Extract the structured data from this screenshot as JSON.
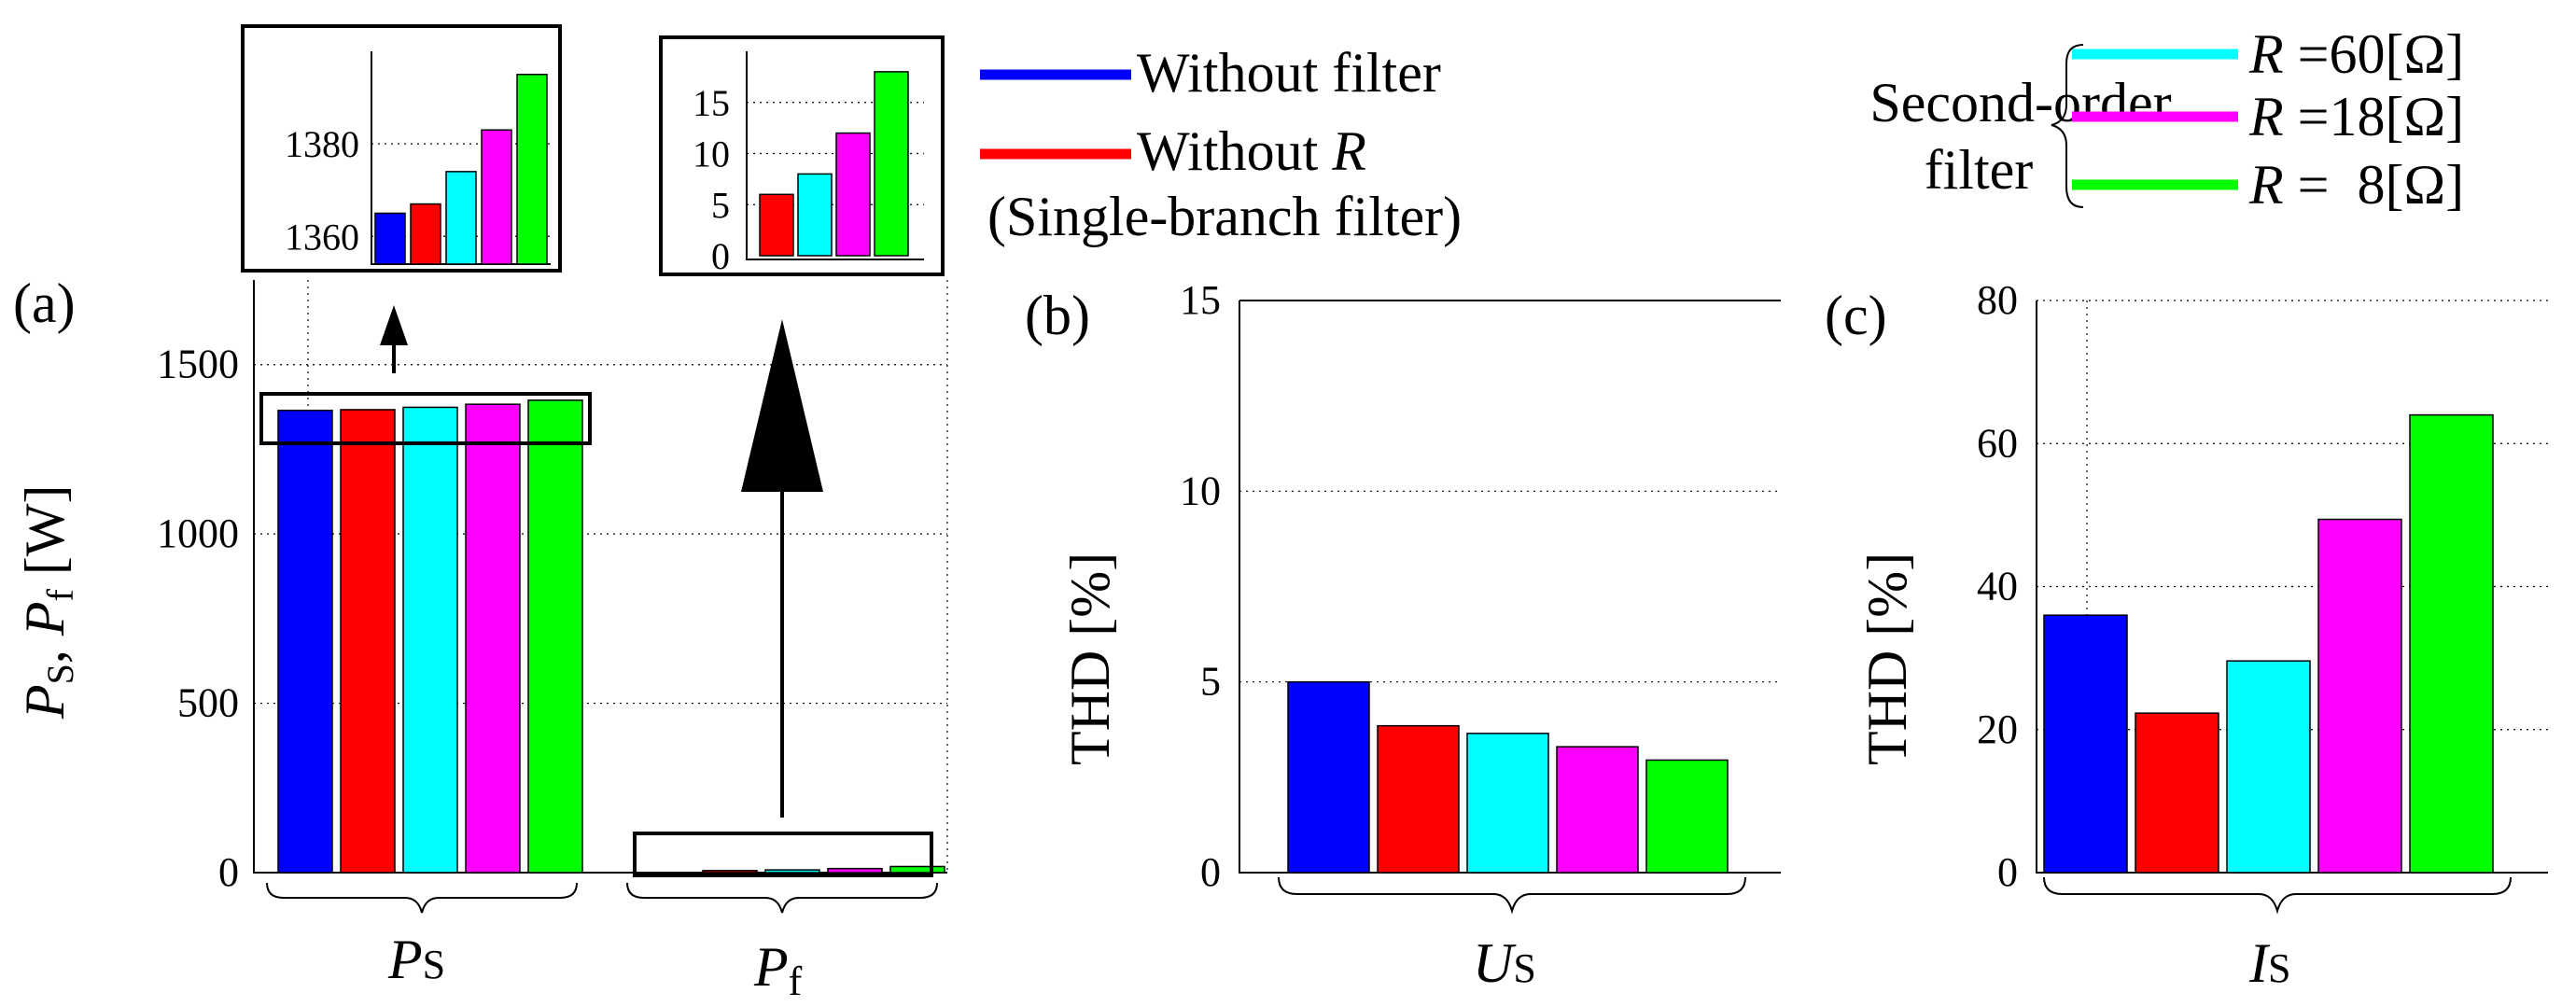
{
  "chart_data": [
    {
      "type": "bar",
      "panel": "(a)",
      "ylabel_sym1": "P",
      "ylabel_sub1": "S",
      "ylabel_sep": ", ",
      "ylabel_sym2": "P",
      "ylabel_sub2": "f",
      "ylabel_unit": " [W]",
      "ylim": [
        0,
        1750
      ],
      "yticks": [
        0,
        500,
        1000,
        1500
      ],
      "groups": [
        {
          "symbol": "P",
          "sub": "S",
          "values": [
            1365,
            1367,
            1374,
            1383,
            1395
          ]
        },
        {
          "symbol": "P",
          "sub": "f",
          "values": [
            0,
            6,
            8,
            12,
            18
          ]
        }
      ],
      "insets": [
        {
          "ylim": [
            1354,
            1400
          ],
          "yticks": [
            1360,
            1380
          ],
          "values": [
            1365,
            1367,
            1374,
            1383,
            1395
          ]
        },
        {
          "ylim": [
            0,
            20
          ],
          "yticks": [
            0,
            5,
            10,
            15
          ],
          "values": [
            6,
            8,
            12,
            18
          ]
        }
      ]
    },
    {
      "type": "bar",
      "panel": "(b)",
      "ylabel": "THD [%]",
      "ylim": [
        0,
        15
      ],
      "yticks": [
        0,
        5,
        10,
        15
      ],
      "group_symbol": "U",
      "group_sub": "S",
      "values": [
        5.0,
        3.85,
        3.65,
        3.3,
        2.95
      ]
    },
    {
      "type": "bar",
      "panel": "(c)",
      "ylabel": "THD [%]",
      "ylim": [
        0,
        80
      ],
      "yticks": [
        0,
        20,
        40,
        60,
        80
      ],
      "group_symbol": "I",
      "group_sub": "S",
      "values": [
        36,
        22.3,
        29.6,
        49.4,
        64
      ]
    }
  ],
  "colors": [
    "#0000ff",
    "#ff0000",
    "#00ffff",
    "#ff00ff",
    "#00ff00"
  ],
  "legend": {
    "without_filter": "Without filter",
    "without_r": "Without ",
    "r_symbol": "R",
    "single_branch": "(Single-branch filter)",
    "second_order_line1": "Second-order",
    "second_order_line2": "filter",
    "r_entries": [
      {
        "sym": "R",
        "eq": " =60",
        "unit": "[Ω]"
      },
      {
        "sym": "R",
        "eq": " =18",
        "unit": "[Ω]"
      },
      {
        "sym": "R",
        "eq": " =  8",
        "unit": "[Ω]"
      }
    ]
  }
}
